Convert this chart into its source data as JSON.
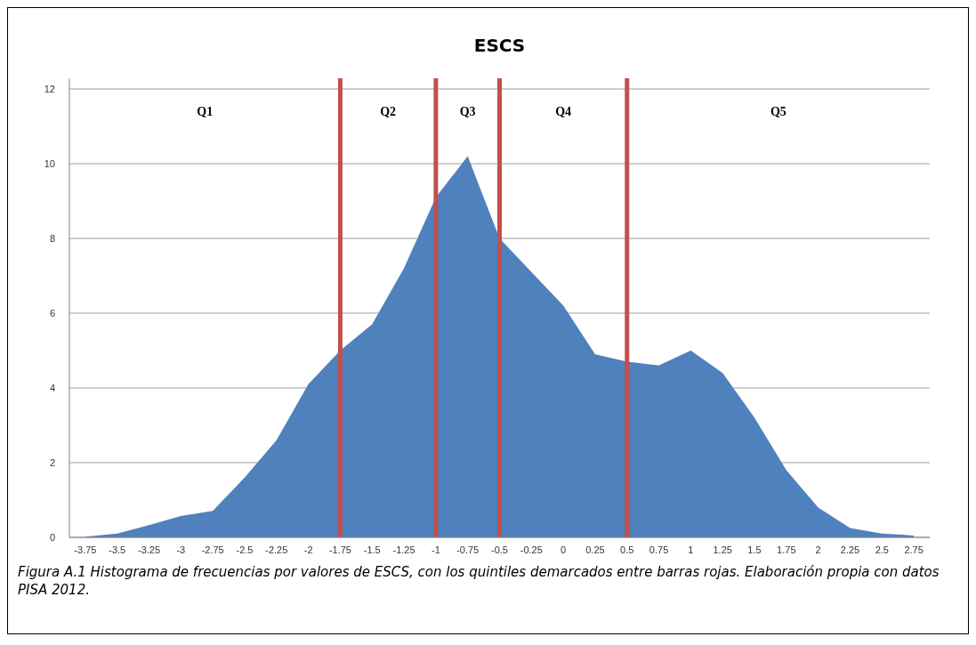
{
  "chart_data": {
    "type": "area",
    "title": "ESCS",
    "x": [
      -3.75,
      -3.5,
      -3.25,
      -3,
      -2.75,
      -2.5,
      -2.25,
      -2,
      -1.75,
      -1.5,
      -1.25,
      -1,
      -0.75,
      -0.5,
      -0.25,
      0,
      0.25,
      0.5,
      0.75,
      1,
      1.25,
      1.5,
      1.75,
      2,
      2.25,
      2.5,
      2.75
    ],
    "values": [
      0.02,
      0.1,
      0.33,
      0.57,
      0.71,
      1.6,
      2.6,
      4.1,
      5.0,
      5.7,
      7.2,
      9.1,
      10.2,
      8.0,
      7.1,
      6.2,
      4.9,
      4.7,
      4.6,
      5.0,
      4.4,
      3.2,
      1.8,
      0.8,
      0.25,
      0.1,
      0.05
    ],
    "color": "#4f81bd",
    "xlim": [
      -3.875,
      2.875
    ],
    "xticks": [
      -3.75,
      -3.5,
      -3.25,
      -3,
      -2.75,
      -2.5,
      -2.25,
      -2,
      -1.75,
      -1.5,
      -1.25,
      -1,
      -0.75,
      -0.5,
      -0.25,
      0,
      0.25,
      0.5,
      0.75,
      1,
      1.25,
      1.5,
      1.75,
      2,
      2.25,
      2.5,
      2.75
    ],
    "ylim": [
      0,
      12
    ],
    "yticks": [
      0,
      2,
      4,
      6,
      8,
      10,
      12
    ],
    "grid": "y",
    "ref_lines": [
      {
        "axis": "x",
        "value": -1.75,
        "color": "#c0504d"
      },
      {
        "axis": "x",
        "value": -1,
        "color": "#c0504d"
      },
      {
        "axis": "x",
        "value": -0.5,
        "color": "#c0504d"
      },
      {
        "axis": "x",
        "value": 0.5,
        "color": "#c0504d"
      }
    ],
    "annotations": [
      "Q1",
      "Q2",
      "Q3",
      "Q4",
      "Q5",
      "Figura A.1 Histograma de frecuencias por valores de ESCS, con los quintiles demarcados entre barras rojas. Elaboración propia con datos PISA 2012."
    ]
  }
}
